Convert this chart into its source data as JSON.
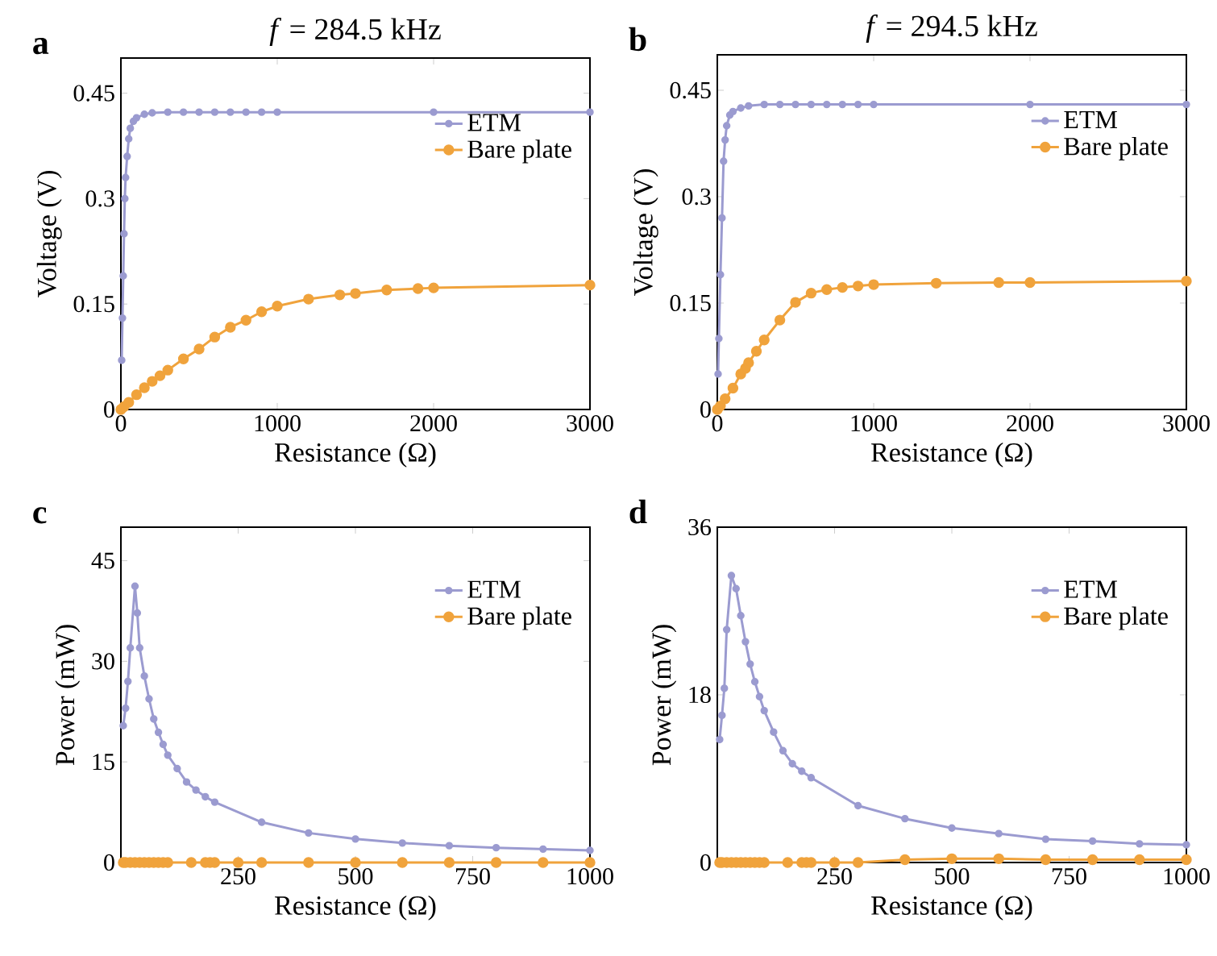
{
  "chart_data": [
    {
      "type": "line",
      "title": "*f* = 284.5 kHz",
      "xlabel": "Resistance (Ω)",
      "ylabel": "Voltage (V)",
      "annotations": [
        "a"
      ],
      "xlim": [
        0,
        3000
      ],
      "ylim": [
        0,
        0.5
      ],
      "xticks": [
        0,
        1000,
        2000,
        3000
      ],
      "yticks": [
        0,
        0.15,
        0.3,
        0.45
      ],
      "legend": "top right",
      "marker": "circle",
      "series": [
        {
          "name": "ETM",
          "color": "#9b9bd0",
          "x": [
            5,
            10,
            15,
            20,
            25,
            30,
            40,
            50,
            60,
            80,
            100,
            150,
            200,
            300,
            400,
            500,
            600,
            700,
            800,
            900,
            1000,
            2000,
            3000
          ],
          "values": [
            0.07,
            0.13,
            0.19,
            0.25,
            0.3,
            0.33,
            0.36,
            0.385,
            0.4,
            0.41,
            0.415,
            0.42,
            0.422,
            0.423,
            0.423,
            0.423,
            0.423,
            0.423,
            0.423,
            0.423,
            0.423,
            0.423,
            0.423
          ]
        },
        {
          "name": "Bare plate",
          "color": "#f0a33c",
          "x": [
            0,
            20,
            50,
            100,
            150,
            200,
            250,
            300,
            400,
            500,
            600,
            700,
            800,
            900,
            1000,
            1200,
            1400,
            1500,
            1700,
            1900,
            2000,
            3000
          ],
          "values": [
            0,
            0.004,
            0.01,
            0.021,
            0.031,
            0.04,
            0.048,
            0.056,
            0.072,
            0.086,
            0.103,
            0.117,
            0.127,
            0.139,
            0.147,
            0.157,
            0.163,
            0.165,
            0.17,
            0.172,
            0.173,
            0.177
          ]
        }
      ]
    },
    {
      "type": "line",
      "title": "*f* = 294.5 kHz",
      "xlabel": "Resistance (Ω)",
      "ylabel": "Voltage (V)",
      "annotations": [
        "b"
      ],
      "xlim": [
        0,
        3000
      ],
      "ylim": [
        0,
        0.5
      ],
      "xticks": [
        0,
        1000,
        2000,
        3000
      ],
      "yticks": [
        0,
        0.15,
        0.3,
        0.45
      ],
      "legend": "top right",
      "marker": "circle",
      "series": [
        {
          "name": "ETM",
          "color": "#9b9bd0",
          "x": [
            5,
            10,
            20,
            30,
            40,
            50,
            60,
            80,
            100,
            150,
            200,
            300,
            400,
            500,
            600,
            700,
            800,
            900,
            1000,
            2000,
            3000
          ],
          "values": [
            0.05,
            0.1,
            0.19,
            0.27,
            0.35,
            0.38,
            0.4,
            0.415,
            0.42,
            0.425,
            0.428,
            0.43,
            0.43,
            0.43,
            0.43,
            0.43,
            0.43,
            0.43,
            0.43,
            0.43,
            0.43
          ]
        },
        {
          "name": "Bare plate",
          "color": "#f0a33c",
          "x": [
            0,
            20,
            50,
            100,
            150,
            180,
            200,
            250,
            300,
            400,
            500,
            600,
            700,
            800,
            900,
            1000,
            1400,
            1800,
            2000,
            3000
          ],
          "values": [
            0,
            0.005,
            0.015,
            0.03,
            0.05,
            0.058,
            0.066,
            0.082,
            0.098,
            0.126,
            0.151,
            0.164,
            0.169,
            0.172,
            0.174,
            0.176,
            0.178,
            0.179,
            0.179,
            0.181
          ]
        }
      ]
    },
    {
      "type": "line",
      "xlabel": "Resistance (Ω)",
      "ylabel": "Power (mW)",
      "annotations": [
        "c"
      ],
      "xlim": [
        0,
        1000
      ],
      "ylim": [
        0,
        50
      ],
      "xticks": [
        250,
        500,
        750,
        1000
      ],
      "yticks": [
        0,
        15,
        30,
        45
      ],
      "legend": "top right",
      "marker": "circle",
      "series": [
        {
          "name": "ETM",
          "color": "#9b9bd0",
          "x": [
            5,
            10,
            15,
            20,
            30,
            35,
            40,
            50,
            60,
            70,
            80,
            90,
            100,
            120,
            140,
            160,
            180,
            200,
            300,
            400,
            500,
            600,
            700,
            800,
            900,
            1000
          ],
          "values": [
            20.4,
            23,
            27,
            32,
            41.2,
            37.2,
            32,
            27.8,
            24.4,
            21.4,
            19.4,
            17.6,
            16,
            14,
            12,
            10.8,
            9.8,
            9,
            6,
            4.4,
            3.5,
            2.9,
            2.5,
            2.2,
            2,
            1.8
          ]
        },
        {
          "name": "Bare plate",
          "color": "#f0a33c",
          "x": [
            5,
            10,
            20,
            30,
            40,
            50,
            60,
            70,
            80,
            90,
            100,
            150,
            180,
            190,
            200,
            250,
            300,
            400,
            500,
            600,
            700,
            800,
            900,
            1000
          ],
          "values": [
            0,
            0,
            0,
            0,
            0,
            0,
            0,
            0,
            0,
            0,
            0,
            0,
            0,
            0,
            0,
            0,
            0,
            0,
            0,
            0,
            0,
            0,
            0,
            0
          ]
        }
      ]
    },
    {
      "type": "line",
      "xlabel": "Resistance (Ω)",
      "ylabel": "Power (mW)",
      "annotations": [
        "d"
      ],
      "xlim": [
        0,
        1000
      ],
      "ylim": [
        0,
        36
      ],
      "xticks": [
        250,
        500,
        750,
        1000
      ],
      "yticks": [
        0,
        18,
        36
      ],
      "legend": "top right",
      "marker": "circle",
      "series": [
        {
          "name": "ETM",
          "color": "#9b9bd0",
          "x": [
            5,
            10,
            15,
            20,
            30,
            40,
            50,
            60,
            70,
            80,
            90,
            100,
            120,
            140,
            160,
            180,
            200,
            300,
            400,
            500,
            600,
            700,
            800,
            900,
            1000
          ],
          "values": [
            13.2,
            15.8,
            18.7,
            25,
            30.8,
            29.4,
            26.5,
            23.7,
            21.3,
            19.4,
            17.8,
            16.3,
            14,
            12,
            10.6,
            9.8,
            9.1,
            6.1,
            4.7,
            3.7,
            3.1,
            2.5,
            2.3,
            2,
            1.9
          ]
        },
        {
          "name": "Bare plate",
          "color": "#f0a33c",
          "x": [
            5,
            10,
            20,
            30,
            40,
            50,
            60,
            70,
            80,
            90,
            100,
            150,
            180,
            190,
            200,
            250,
            300,
            400,
            500,
            600,
            700,
            800,
            900,
            1000
          ],
          "values": [
            0,
            0,
            0,
            0,
            0,
            0,
            0,
            0,
            0,
            0,
            0,
            0,
            0,
            0,
            0,
            0,
            0,
            0.3,
            0.4,
            0.4,
            0.3,
            0.3,
            0.3,
            0.3
          ]
        }
      ]
    }
  ]
}
